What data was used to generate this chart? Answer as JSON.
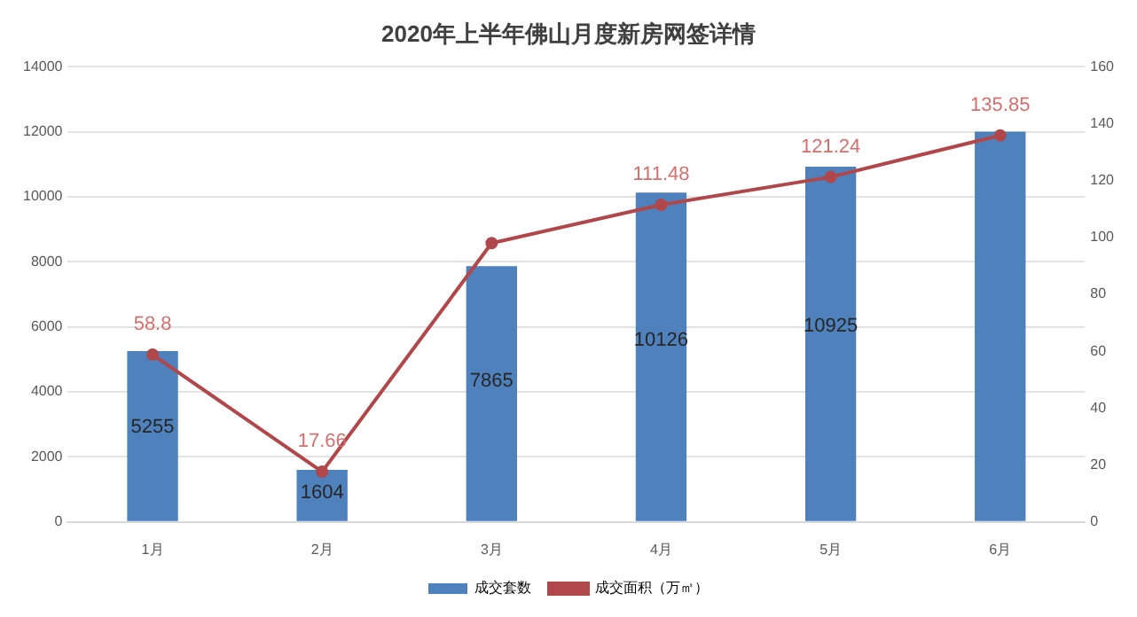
{
  "chart_data": {
    "type": "bar",
    "title": "2020年上半年佛山月度新房网签详情",
    "categories": [
      "1月",
      "2月",
      "3月",
      "4月",
      "5月",
      "6月"
    ],
    "series": [
      {
        "name": "成交套数",
        "color": "#4f81bd",
        "values": [
          5255,
          1604,
          7865,
          10126,
          10925,
          12000
        ],
        "value_labels": [
          "5255",
          "1604",
          "7865",
          "10126",
          "10925",
          null
        ]
      },
      {
        "name": "成交面积（万㎡）",
        "type": "line",
        "axis": "y2",
        "color": "#b0474a",
        "values": [
          58.8,
          17.66,
          98,
          111.48,
          121.24,
          135.85
        ],
        "value_labels": [
          "58.8",
          "17.66",
          null,
          "111.48",
          "121.24",
          "135.85"
        ]
      }
    ],
    "ylim": [
      0,
      14000
    ],
    "yticks": [
      0,
      2000,
      4000,
      6000,
      8000,
      10000,
      12000,
      14000
    ],
    "y2lim": [
      0,
      160
    ],
    "y2ticks": [
      0,
      20,
      40,
      60,
      80,
      100,
      120,
      140,
      160
    ],
    "grid": "y",
    "legend": "bottom",
    "marker": "circle",
    "line_style": "solid"
  }
}
